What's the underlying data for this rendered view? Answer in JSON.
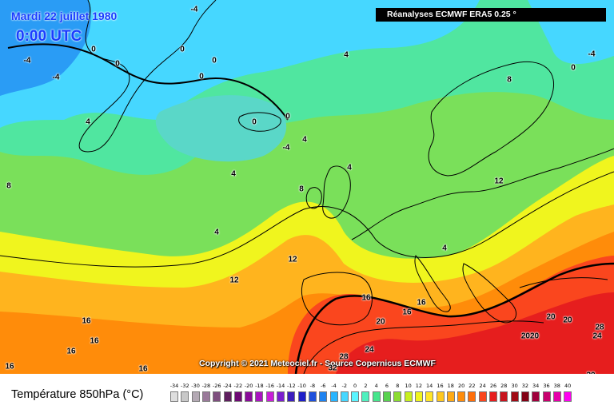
{
  "map": {
    "date_label": "Mardi 22 juillet 1980",
    "time_label": "0:00 UTC",
    "source_label": "Réanalyses ECMWF ERA5 0.25 °",
    "copyright": "Copyright © 2021 Meteociel.fr - Source Copernicus ECMWF",
    "isotherm_labels": [
      "-4",
      "0",
      "4",
      "8",
      "12",
      "16",
      "20",
      "24",
      "28",
      "32",
      "2020"
    ]
  },
  "legend": {
    "title": "Température 850hPa (°C)",
    "scale": [
      {
        "value": "-34",
        "color": "#dedede"
      },
      {
        "value": "-32",
        "color": "#c8c8c8"
      },
      {
        "value": "-30",
        "color": "#b4a9b4"
      },
      {
        "value": "-28",
        "color": "#9a7a9a"
      },
      {
        "value": "-26",
        "color": "#7e4e7e"
      },
      {
        "value": "-24",
        "color": "#5e1e5e"
      },
      {
        "value": "-22",
        "color": "#6e0a74"
      },
      {
        "value": "-20",
        "color": "#8a0a9a"
      },
      {
        "value": "-18",
        "color": "#aa14c0"
      },
      {
        "value": "-16",
        "color": "#c81ed8"
      },
      {
        "value": "-14",
        "color": "#7a1ecf"
      },
      {
        "value": "-12",
        "color": "#3c1ebe"
      },
      {
        "value": "-10",
        "color": "#1e1ec8"
      },
      {
        "value": "-8",
        "color": "#1e50dc"
      },
      {
        "value": "-6",
        "color": "#1e82f0"
      },
      {
        "value": "-4",
        "color": "#28b4ff"
      },
      {
        "value": "-2",
        "color": "#46d7ff"
      },
      {
        "value": "0",
        "color": "#5af5ff"
      },
      {
        "value": "2",
        "color": "#50f0be"
      },
      {
        "value": "4",
        "color": "#46e68c"
      },
      {
        "value": "6",
        "color": "#5ad250"
      },
      {
        "value": "8",
        "color": "#8cdc32"
      },
      {
        "value": "10",
        "color": "#c8f01e"
      },
      {
        "value": "12",
        "color": "#f0f51e"
      },
      {
        "value": "14",
        "color": "#ffe628"
      },
      {
        "value": "16",
        "color": "#ffc81e"
      },
      {
        "value": "18",
        "color": "#ffaa14"
      },
      {
        "value": "20",
        "color": "#ff8c0a"
      },
      {
        "value": "22",
        "color": "#ff6e0a"
      },
      {
        "value": "24",
        "color": "#fa461e"
      },
      {
        "value": "26",
        "color": "#e61e1e"
      },
      {
        "value": "28",
        "color": "#c8141e"
      },
      {
        "value": "30",
        "color": "#a00a14"
      },
      {
        "value": "32",
        "color": "#820014"
      },
      {
        "value": "34",
        "color": "#a0003c"
      },
      {
        "value": "36",
        "color": "#c8006e"
      },
      {
        "value": "38",
        "color": "#e600aa"
      },
      {
        "value": "40",
        "color": "#ff00f0"
      }
    ]
  }
}
